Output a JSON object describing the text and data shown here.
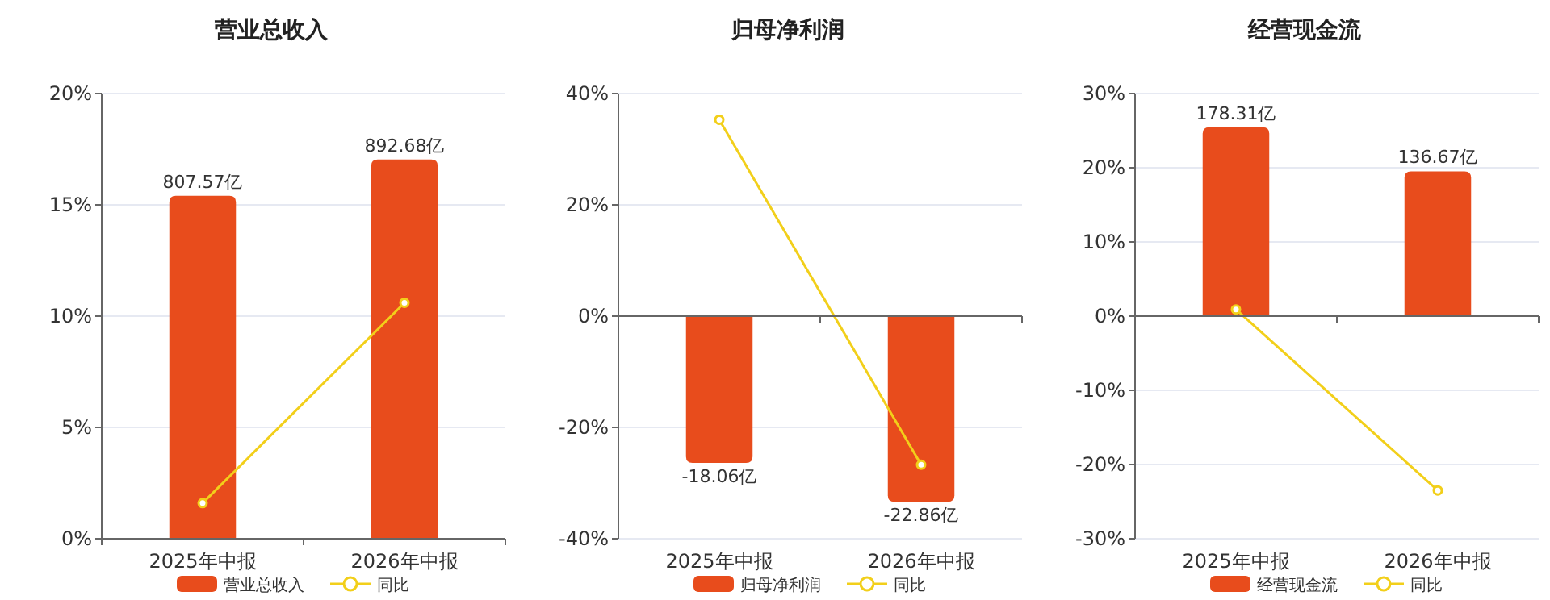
{
  "chart_data": [
    {
      "type": "bar",
      "title": "营业总收入",
      "categories": [
        "2025年中报",
        "2026年中报"
      ],
      "series": [
        {
          "name": "营业总收入",
          "axis": "y2",
          "color": "#e84c1c",
          "values": [
            807.57,
            892.68
          ],
          "value_labels": [
            "807.57亿",
            "892.68亿"
          ]
        },
        {
          "name": "同比",
          "type": "line",
          "color": "#f2cf1a",
          "values": [
            1.6,
            10.6
          ],
          "marker": "circle"
        }
      ],
      "ylim": [
        0,
        20
      ],
      "yticks": [
        {
          "value": 0,
          "label": "0%"
        },
        {
          "value": 5,
          "label": "5%"
        },
        {
          "value": 10,
          "label": "10%"
        },
        {
          "value": 15,
          "label": "15%"
        },
        {
          "value": 20,
          "label": "20%"
        }
      ],
      "y2lim": [
        0,
        1048
      ],
      "grid": "y",
      "legend": "bottom"
    },
    {
      "type": "bar",
      "title": "归母净利润",
      "categories": [
        "2025年中报",
        "2026年中报"
      ],
      "series": [
        {
          "name": "归母净利润",
          "axis": "y2",
          "color": "#e84c1c",
          "values": [
            -18.06,
            -22.86
          ],
          "value_labels": [
            "-18.06亿",
            "-22.86亿"
          ]
        },
        {
          "name": "同比",
          "type": "line",
          "color": "#f2cf1a",
          "values": [
            35.3,
            -26.7
          ],
          "marker": "circle"
        }
      ],
      "ylim": [
        -40,
        40
      ],
      "yticks": [
        {
          "value": -40,
          "label": "-40%"
        },
        {
          "value": -20,
          "label": "-20%"
        },
        {
          "value": 0,
          "label": "0%"
        },
        {
          "value": 20,
          "label": "20%"
        },
        {
          "value": 40,
          "label": "40%"
        }
      ],
      "y2lim": [
        -27.4,
        27.4
      ],
      "grid": "y",
      "legend": "bottom"
    },
    {
      "type": "bar",
      "title": "经营现金流",
      "categories": [
        "2025年中报",
        "2026年中报"
      ],
      "series": [
        {
          "name": "经营现金流",
          "axis": "y2",
          "color": "#e84c1c",
          "values": [
            178.31,
            136.67
          ],
          "value_labels": [
            "178.31亿",
            "136.67亿"
          ]
        },
        {
          "name": "同比",
          "type": "line",
          "color": "#f2cf1a",
          "values": [
            0.9,
            -23.5
          ],
          "marker": "circle"
        }
      ],
      "ylim": [
        -30,
        30
      ],
      "yticks": [
        {
          "value": -30,
          "label": "-30%"
        },
        {
          "value": -20,
          "label": "-20%"
        },
        {
          "value": -10,
          "label": "-10%"
        },
        {
          "value": 0,
          "label": "0%"
        },
        {
          "value": 10,
          "label": "10%"
        },
        {
          "value": 20,
          "label": "20%"
        },
        {
          "value": 30,
          "label": "30%"
        }
      ],
      "y2lim": [
        -210,
        210
      ],
      "grid": "y",
      "legend": "bottom"
    }
  ]
}
